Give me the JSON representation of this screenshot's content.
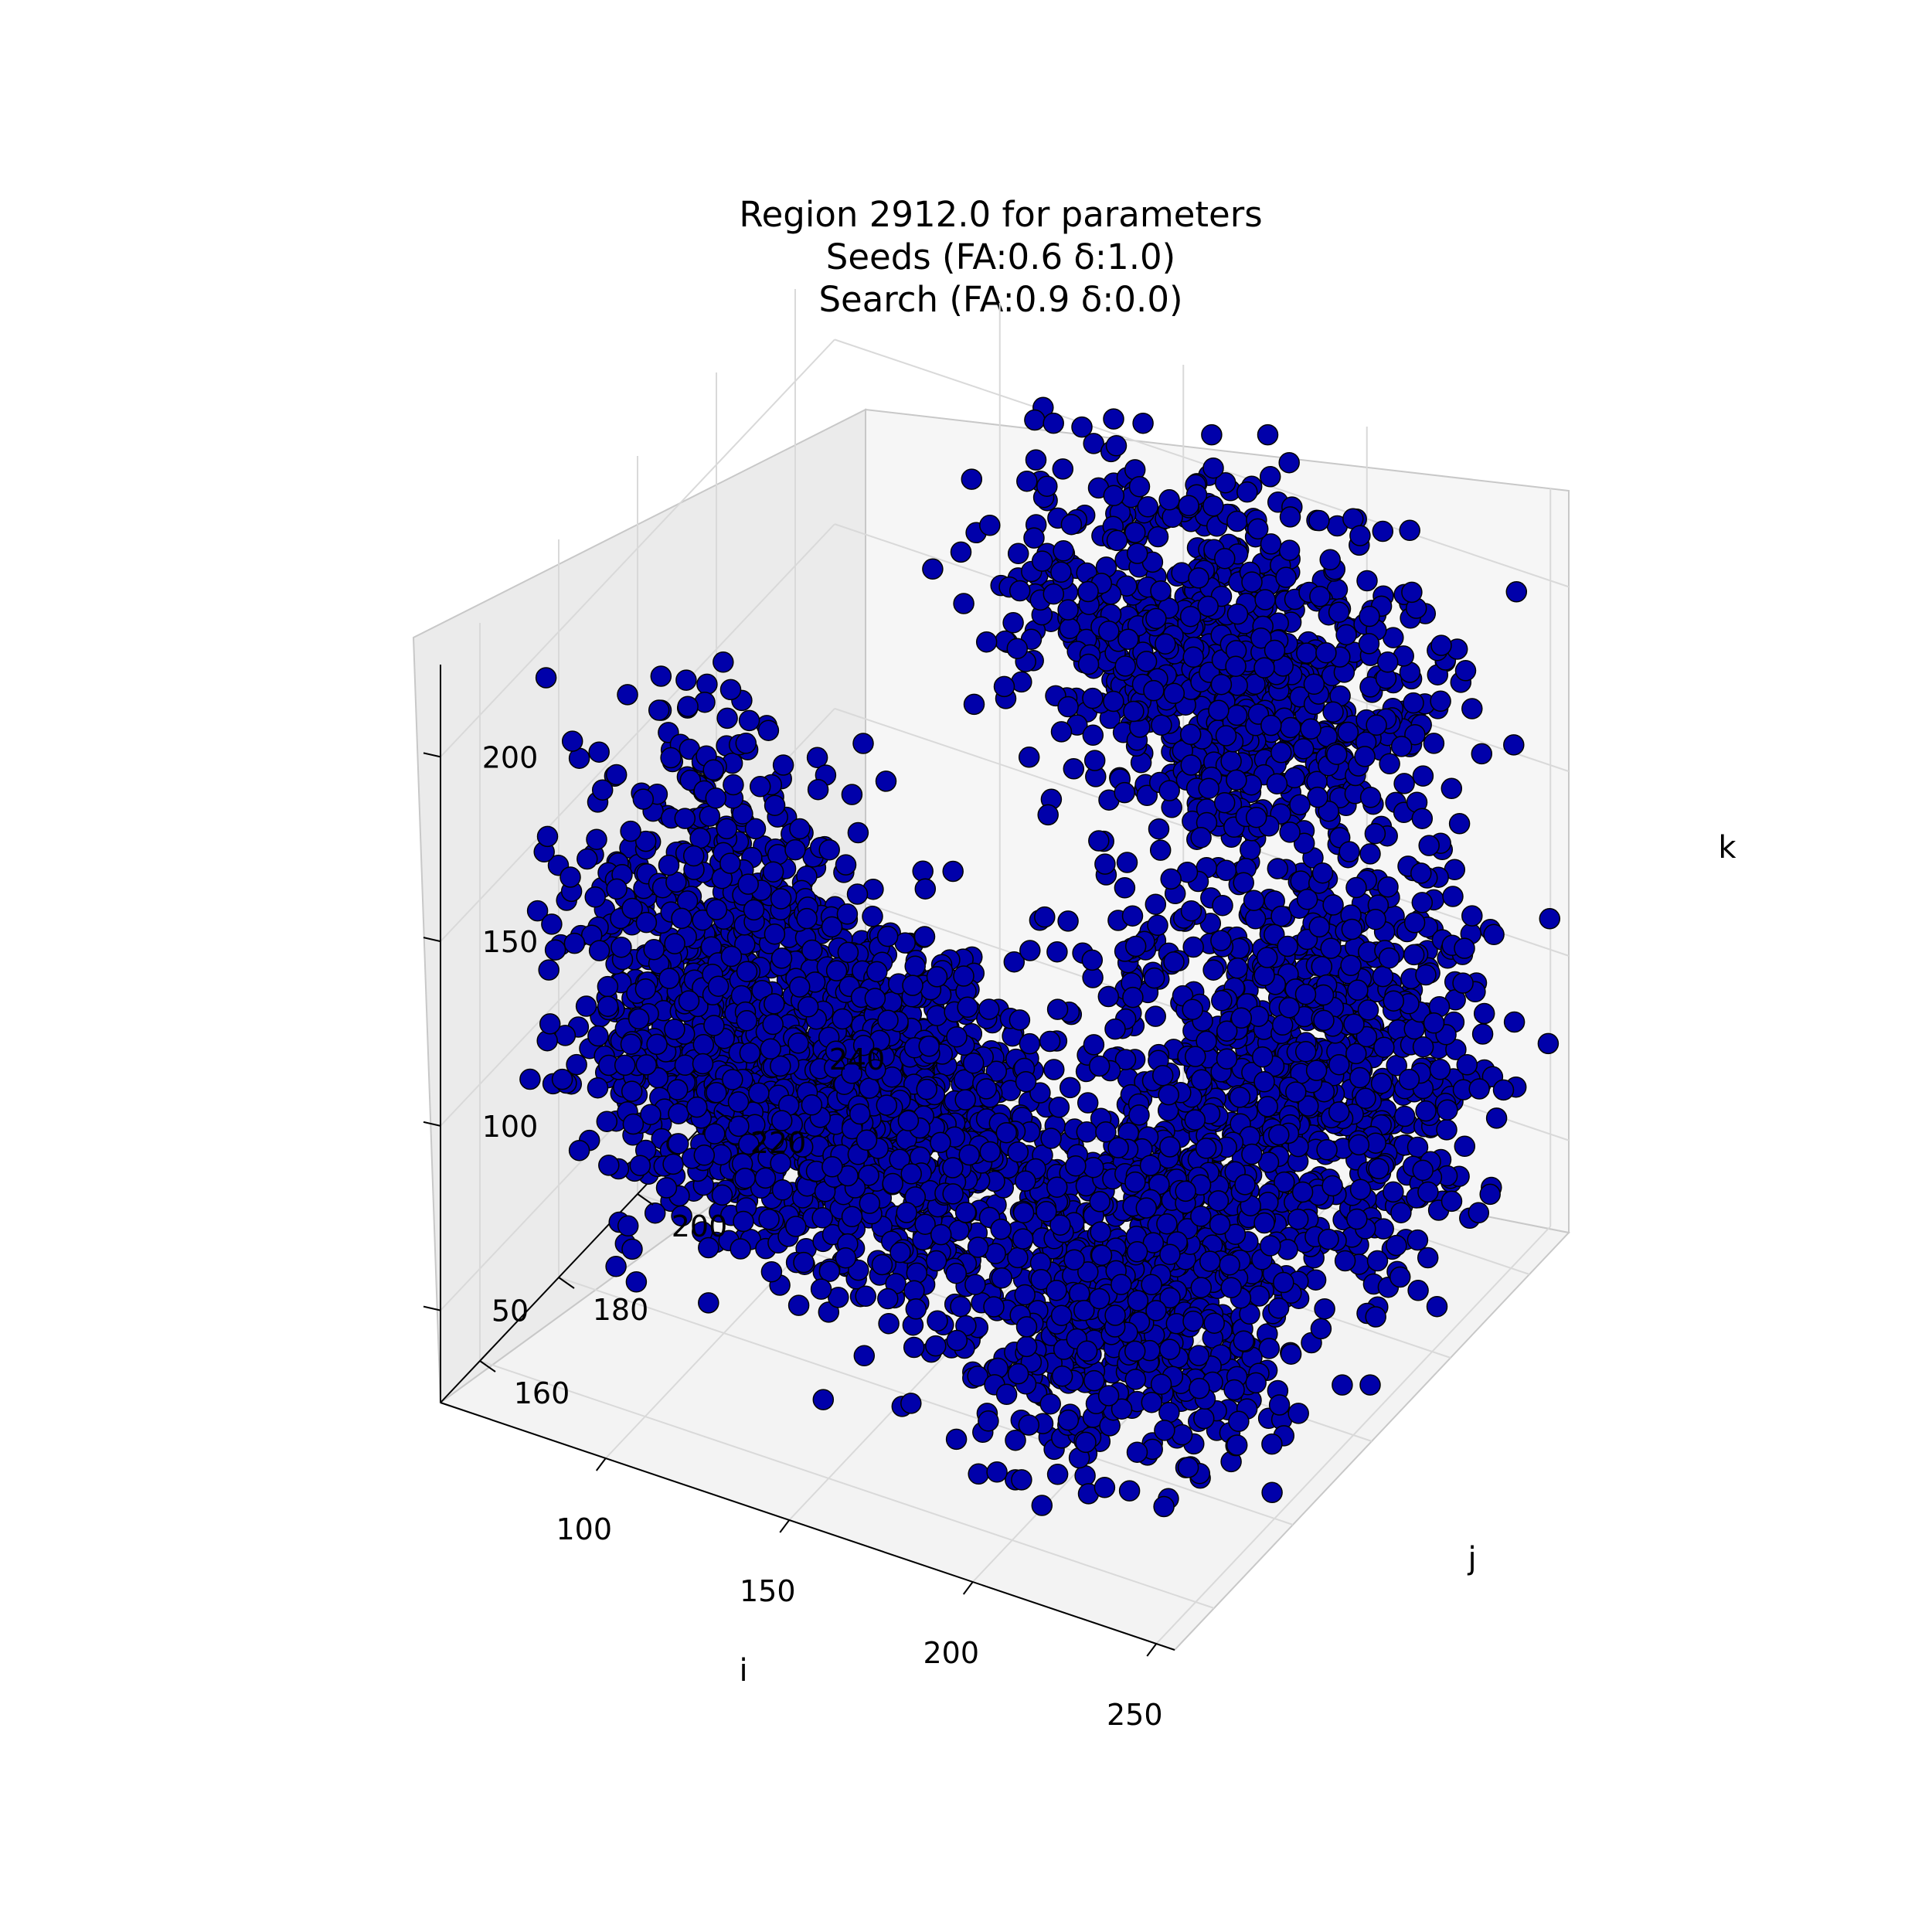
{
  "chart_data": {
    "type": "scatter",
    "projection": "3d",
    "title": [
      "Region 2912.0 for parameters",
      "Seeds (FA:0.6 δ:1.0)",
      "Search (FA:0.9 δ:0.0)"
    ],
    "xlabel": "i",
    "ylabel": "j",
    "zlabel": "k",
    "x_ticks": [
      "100",
      "150",
      "200",
      "250"
    ],
    "y_ticks": [
      "160",
      "180",
      "200",
      "220",
      "240"
    ],
    "z_ticks": [
      "50",
      "100",
      "150",
      "200"
    ],
    "xlim": [
      55,
      255
    ],
    "ylim": [
      150,
      250
    ],
    "zlim": [
      25,
      225
    ],
    "grid": true,
    "pane_colors": [
      "#f3f3f3",
      "#ebebeb",
      "#f6f6f6"
    ],
    "marker_color": "#0000aa",
    "marker_edge": "#000000",
    "clusters": [
      {
        "center": [
          115,
          165,
          140
        ],
        "spread": [
          28,
          12,
          45
        ]
      },
      {
        "center": [
          185,
          230,
          180
        ],
        "spread": [
          40,
          10,
          35
        ]
      },
      {
        "center": [
          215,
          225,
          85
        ],
        "spread": [
          35,
          15,
          40
        ]
      },
      {
        "center": [
          205,
          185,
          70
        ],
        "spread": [
          30,
          15,
          35
        ]
      },
      {
        "center": [
          150,
          175,
          110
        ],
        "spread": [
          25,
          12,
          30
        ]
      }
    ]
  }
}
